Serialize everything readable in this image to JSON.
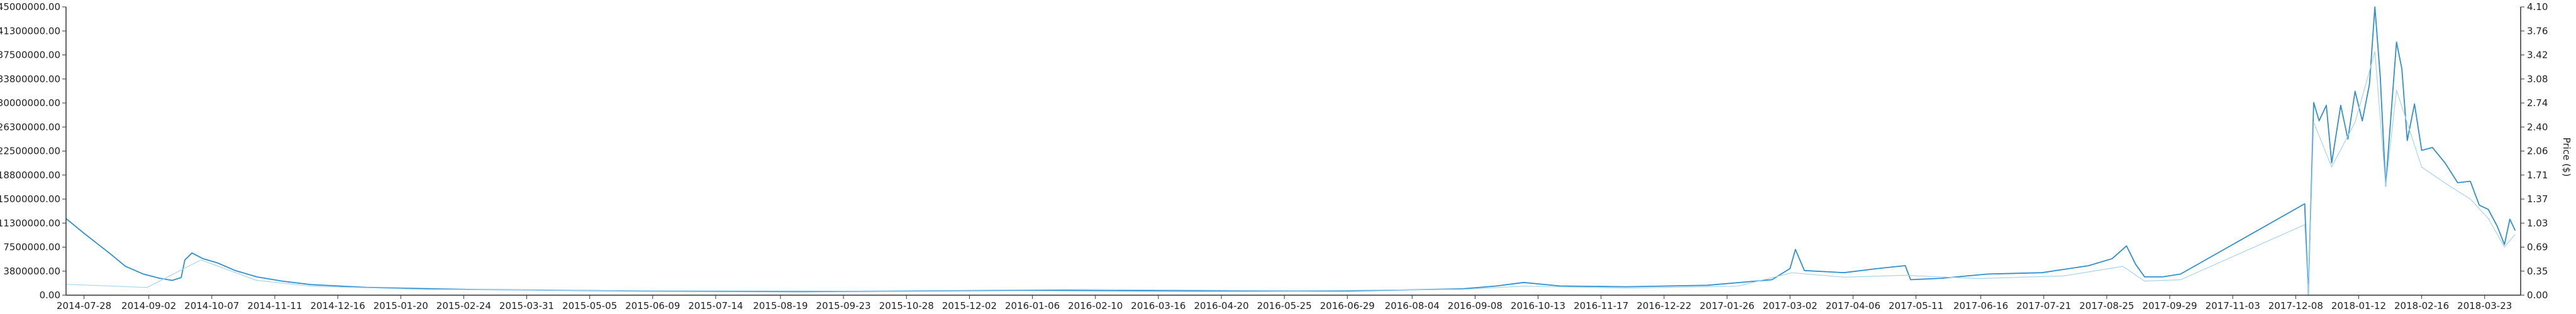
{
  "chart_data": {
    "type": "line",
    "title": "",
    "y_left_label": "",
    "y_right_label": "Price ($)",
    "grid": false,
    "legend": "none",
    "x_tick_labels": [
      "2014-07-28",
      "2014-09-02",
      "2014-10-07",
      "2014-11-11",
      "2014-12-16",
      "2015-01-20",
      "2015-02-24",
      "2015-03-31",
      "2015-05-05",
      "2015-06-09",
      "2015-07-14",
      "2015-08-19",
      "2015-09-23",
      "2015-10-28",
      "2015-12-02",
      "2016-01-06",
      "2016-02-10",
      "2016-03-16",
      "2016-04-20",
      "2016-05-25",
      "2016-06-29",
      "2016-08-04",
      "2016-09-08",
      "2016-10-13",
      "2016-11-17",
      "2016-12-22",
      "2017-01-26",
      "2017-03-02",
      "2017-04-06",
      "2017-05-11",
      "2017-06-16",
      "2017-07-21",
      "2017-08-25",
      "2017-09-29",
      "2017-11-03",
      "2017-12-08",
      "2018-01-12",
      "2018-02-16",
      "2018-03-23"
    ],
    "y_left_ticks": [
      "0.00",
      "3800000.00",
      "7500000.00",
      "11300000.00",
      "15000000.00",
      "18800000.00",
      "22500000.00",
      "26300000.00",
      "30000000.00",
      "33800000.00",
      "37500000.00",
      "41300000.00",
      "45000000.00"
    ],
    "y_right_ticks": [
      "0.00",
      "0.35",
      "0.69",
      "1.03",
      "1.37",
      "1.71",
      "2.06",
      "2.40",
      "2.74",
      "3.08",
      "3.42",
      "3.76",
      "4.10"
    ],
    "y_left_range": [
      0,
      45000000
    ],
    "y_right_range": [
      0,
      4.1
    ],
    "series": [
      {
        "axis": "right",
        "color": "#2f8fcf",
        "points": [
          [
            "2014-07-18",
            1.09
          ],
          [
            "2014-07-28",
            0.88
          ],
          [
            "2014-08-05",
            0.72
          ],
          [
            "2014-08-12",
            0.58
          ],
          [
            "2014-08-20",
            0.41
          ],
          [
            "2014-08-30",
            0.3
          ],
          [
            "2014-09-08",
            0.24
          ],
          [
            "2014-09-15",
            0.21
          ],
          [
            "2014-09-20",
            0.25
          ],
          [
            "2014-09-22",
            0.5
          ],
          [
            "2014-09-26",
            0.6
          ],
          [
            "2014-10-02",
            0.52
          ],
          [
            "2014-10-10",
            0.46
          ],
          [
            "2014-10-20",
            0.35
          ],
          [
            "2014-11-01",
            0.26
          ],
          [
            "2014-11-15",
            0.2
          ],
          [
            "2014-12-01",
            0.15
          ],
          [
            "2015-01-01",
            0.11
          ],
          [
            "2015-03-01",
            0.08
          ],
          [
            "2015-06-01",
            0.06
          ],
          [
            "2015-09-01",
            0.05
          ],
          [
            "2016-01-01",
            0.07
          ],
          [
            "2016-04-01",
            0.06
          ],
          [
            "2016-07-01",
            0.06
          ],
          [
            "2016-09-01",
            0.09
          ],
          [
            "2016-09-20",
            0.13
          ],
          [
            "2016-10-05",
            0.18
          ],
          [
            "2016-10-25",
            0.13
          ],
          [
            "2016-12-01",
            0.12
          ],
          [
            "2017-01-15",
            0.14
          ],
          [
            "2017-02-20",
            0.22
          ],
          [
            "2017-03-02",
            0.38
          ],
          [
            "2017-03-05",
            0.65
          ],
          [
            "2017-03-10",
            0.35
          ],
          [
            "2017-04-01",
            0.32
          ],
          [
            "2017-04-20",
            0.38
          ],
          [
            "2017-05-05",
            0.42
          ],
          [
            "2017-05-08",
            0.22
          ],
          [
            "2017-05-25",
            0.24
          ],
          [
            "2017-06-20",
            0.3
          ],
          [
            "2017-07-20",
            0.32
          ],
          [
            "2017-08-15",
            0.42
          ],
          [
            "2017-08-28",
            0.52
          ],
          [
            "2017-09-05",
            0.7
          ],
          [
            "2017-09-10",
            0.44
          ],
          [
            "2017-09-15",
            0.26
          ],
          [
            "2017-09-25",
            0.26
          ],
          [
            "2017-10-05",
            0.3
          ],
          [
            "2017-12-13",
            1.3
          ],
          [
            "2017-12-15",
            0.0
          ],
          [
            "2017-12-18",
            2.74
          ],
          [
            "2017-12-21",
            2.48
          ],
          [
            "2017-12-25",
            2.7
          ],
          [
            "2017-12-28",
            1.88
          ],
          [
            "2018-01-02",
            2.7
          ],
          [
            "2018-01-06",
            2.22
          ],
          [
            "2018-01-10",
            2.9
          ],
          [
            "2018-01-14",
            2.48
          ],
          [
            "2018-01-18",
            3.0
          ],
          [
            "2018-01-21",
            4.1
          ],
          [
            "2018-01-24",
            3.1
          ],
          [
            "2018-01-27",
            1.55
          ],
          [
            "2018-01-30",
            2.58
          ],
          [
            "2018-02-02",
            3.6
          ],
          [
            "2018-02-05",
            3.22
          ],
          [
            "2018-02-08",
            2.2
          ],
          [
            "2018-02-12",
            2.72
          ],
          [
            "2018-02-16",
            2.06
          ],
          [
            "2018-02-22",
            2.1
          ],
          [
            "2018-03-01",
            1.88
          ],
          [
            "2018-03-08",
            1.6
          ],
          [
            "2018-03-15",
            1.62
          ],
          [
            "2018-03-20",
            1.28
          ],
          [
            "2018-03-25",
            1.22
          ],
          [
            "2018-03-30",
            0.98
          ],
          [
            "2018-04-03",
            0.72
          ],
          [
            "2018-04-06",
            1.08
          ],
          [
            "2018-04-09",
            0.92
          ]
        ]
      },
      {
        "axis": "left",
        "color": "#a6d4ee",
        "points": [
          [
            "2014-07-18",
            1700000
          ],
          [
            "2014-09-01",
            1200000
          ],
          [
            "2014-10-01",
            5500000
          ],
          [
            "2014-11-01",
            2300000
          ],
          [
            "2014-12-01",
            1400000
          ],
          [
            "2015-02-01",
            900000
          ],
          [
            "2015-06-01",
            700000
          ],
          [
            "2015-10-01",
            650000
          ],
          [
            "2016-02-01",
            900000
          ],
          [
            "2016-06-01",
            700000
          ],
          [
            "2016-09-01",
            900000
          ],
          [
            "2016-10-05",
            1400000
          ],
          [
            "2016-12-01",
            1100000
          ],
          [
            "2017-02-01",
            1400000
          ],
          [
            "2017-03-03",
            3500000
          ],
          [
            "2017-04-01",
            2800000
          ],
          [
            "2017-05-05",
            3100000
          ],
          [
            "2017-06-15",
            2600000
          ],
          [
            "2017-08-01",
            3000000
          ],
          [
            "2017-09-03",
            4500000
          ],
          [
            "2017-09-15",
            2200000
          ],
          [
            "2017-10-05",
            2400000
          ],
          [
            "2017-12-13",
            11000000
          ],
          [
            "2017-12-15",
            0
          ],
          [
            "2017-12-18",
            27000000
          ],
          [
            "2017-12-28",
            20000000
          ],
          [
            "2018-01-10",
            27000000
          ],
          [
            "2018-01-21",
            38000000
          ],
          [
            "2018-01-27",
            17000000
          ],
          [
            "2018-02-02",
            32000000
          ],
          [
            "2018-02-16",
            20000000
          ],
          [
            "2018-03-01",
            17500000
          ],
          [
            "2018-03-15",
            15000000
          ],
          [
            "2018-03-25",
            12000000
          ],
          [
            "2018-04-03",
            7500000
          ],
          [
            "2018-04-09",
            9500000
          ]
        ]
      }
    ]
  }
}
